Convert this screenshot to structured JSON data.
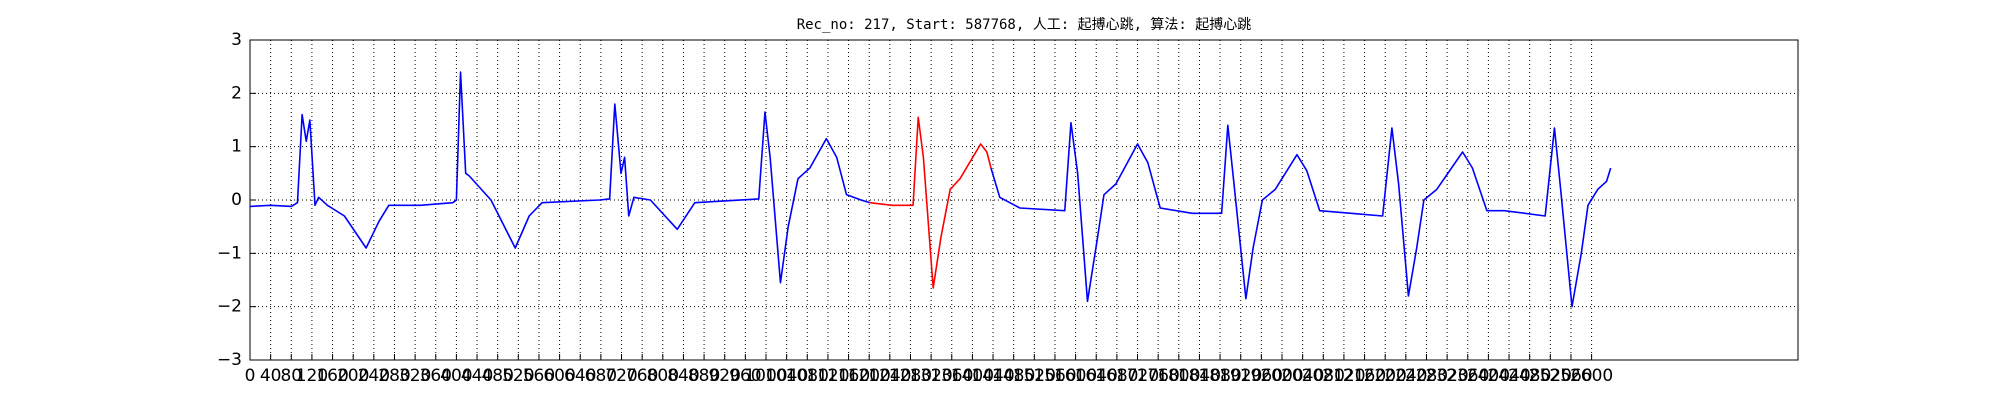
{
  "chart_data": {
    "type": "line",
    "title": "Rec_no: 217, Start: 587768, 人工: 起搏心跳, 算法: 起搏心跳",
    "x": [
      0,
      40,
      80,
      92,
      101,
      109,
      116,
      126,
      133,
      150,
      183,
      225,
      250,
      269,
      330,
      393,
      400,
      408,
      418,
      425,
      467,
      514,
      541,
      566,
      677,
      697,
      707,
      719,
      726,
      734,
      744,
      776,
      828,
      862,
      986,
      998,
      1008,
      1028,
      1043,
      1062,
      1085,
      1117,
      1137,
      1156,
      1184,
      1201,
      1245,
      1285,
      1295,
      1305,
      1324,
      1339,
      1357,
      1376,
      1416,
      1428,
      1436,
      1453,
      1492,
      1579,
      1591,
      1604,
      1623,
      1641,
      1655,
      1678,
      1720,
      1740,
      1764,
      1826,
      1883,
      1895,
      1907,
      1930,
      1944,
      1962,
      1987,
      2029,
      2048,
      2073,
      2134,
      2195,
      2213,
      2226,
      2245,
      2261,
      2275,
      2300,
      2350,
      2369,
      2397,
      2431,
      2510,
      2528,
      2540,
      2562,
      2580,
      2593,
      2612,
      2629,
      2637
    ],
    "series": [
      {
        "color": "#0000ff",
        "values": [
          -0.12,
          -0.1,
          -0.12,
          -0.05,
          1.6,
          1.1,
          1.5,
          -0.1,
          0.05,
          -0.1,
          -0.3,
          -0.9,
          -0.4,
          -0.1,
          -0.1,
          -0.05,
          0,
          2.4,
          0.5,
          0.45,
          0,
          -0.9,
          -0.3,
          -0.05,
          0,
          0.02,
          1.8,
          0.5,
          0.8,
          -0.3,
          0.05,
          0,
          -0.55,
          -0.05,
          0.02,
          1.65,
          0.8,
          -1.55,
          -0.5,
          0.4,
          0.6,
          1.15,
          0.8,
          0.1,
          0,
          -0.05,
          null,
          null,
          null,
          null,
          null,
          null,
          null,
          null,
          null,
          null,
          0.6,
          0.05,
          -0.15,
          -0.2,
          1.45,
          0.5,
          -1.9,
          -0.8,
          0.1,
          0.3,
          1.05,
          0.7,
          -0.15,
          -0.25,
          -0.25,
          1.4,
          0.3,
          -1.85,
          -0.9,
          0,
          0.2,
          0.85,
          0.55,
          -0.2,
          -0.25,
          -0.3,
          1.35,
          0.3,
          -1.8,
          -0.9,
          0,
          0.2,
          0.9,
          0.6,
          -0.2,
          -0.2,
          -0.3,
          1.35,
          0.2,
          -2.0,
          -1.0,
          -0.1,
          0.2,
          0.35,
          0.6
        ]
      },
      {
        "color": "#ff0000",
        "values": [
          null,
          null,
          null,
          null,
          null,
          null,
          null,
          null,
          null,
          null,
          null,
          null,
          null,
          null,
          null,
          null,
          null,
          null,
          null,
          null,
          null,
          null,
          null,
          null,
          null,
          null,
          null,
          null,
          null,
          null,
          null,
          null,
          null,
          null,
          null,
          null,
          null,
          null,
          null,
          null,
          null,
          null,
          null,
          null,
          null,
          -0.05,
          -0.1,
          -0.1,
          1.55,
          0.8,
          -1.65,
          -0.7,
          0.2,
          0.4,
          1.05,
          0.9,
          0.6,
          null,
          null,
          null,
          null,
          null,
          null,
          null,
          null,
          null,
          null,
          null,
          null,
          null,
          null,
          null,
          null,
          null,
          null,
          null,
          null,
          null,
          null,
          null,
          null,
          null,
          null,
          null,
          null,
          null,
          null,
          null,
          null,
          null,
          null,
          null,
          null,
          null,
          null,
          null,
          null,
          null,
          null,
          null,
          null
        ]
      }
    ],
    "xlim": [
      0,
      3000
    ],
    "xticks": [
      0,
      40,
      80,
      120,
      160,
      200,
      240,
      280,
      320,
      360,
      400,
      440,
      480,
      520,
      560,
      600,
      640,
      680,
      720,
      760,
      800,
      840,
      880,
      920,
      960,
      1000,
      1040,
      1080,
      1120,
      1160,
      1200,
      1240,
      1280,
      1320,
      1360,
      1400,
      1440,
      1480,
      1520,
      1560,
      1600,
      1640,
      1680,
      1720,
      1760,
      1800,
      1840,
      1880,
      1920,
      1960,
      2000,
      2040,
      2080,
      2120,
      2160,
      2200,
      2240,
      2280,
      2320,
      2360,
      2400,
      2440,
      2480,
      2520,
      2560,
      2600
    ],
    "ylim": [
      -3,
      3
    ],
    "yticks": [
      {
        "value": -3,
        "label": "−3"
      },
      {
        "value": -2,
        "label": "−2"
      },
      {
        "value": -1,
        "label": "−1"
      },
      0,
      1,
      2,
      3
    ],
    "grid": true
  }
}
